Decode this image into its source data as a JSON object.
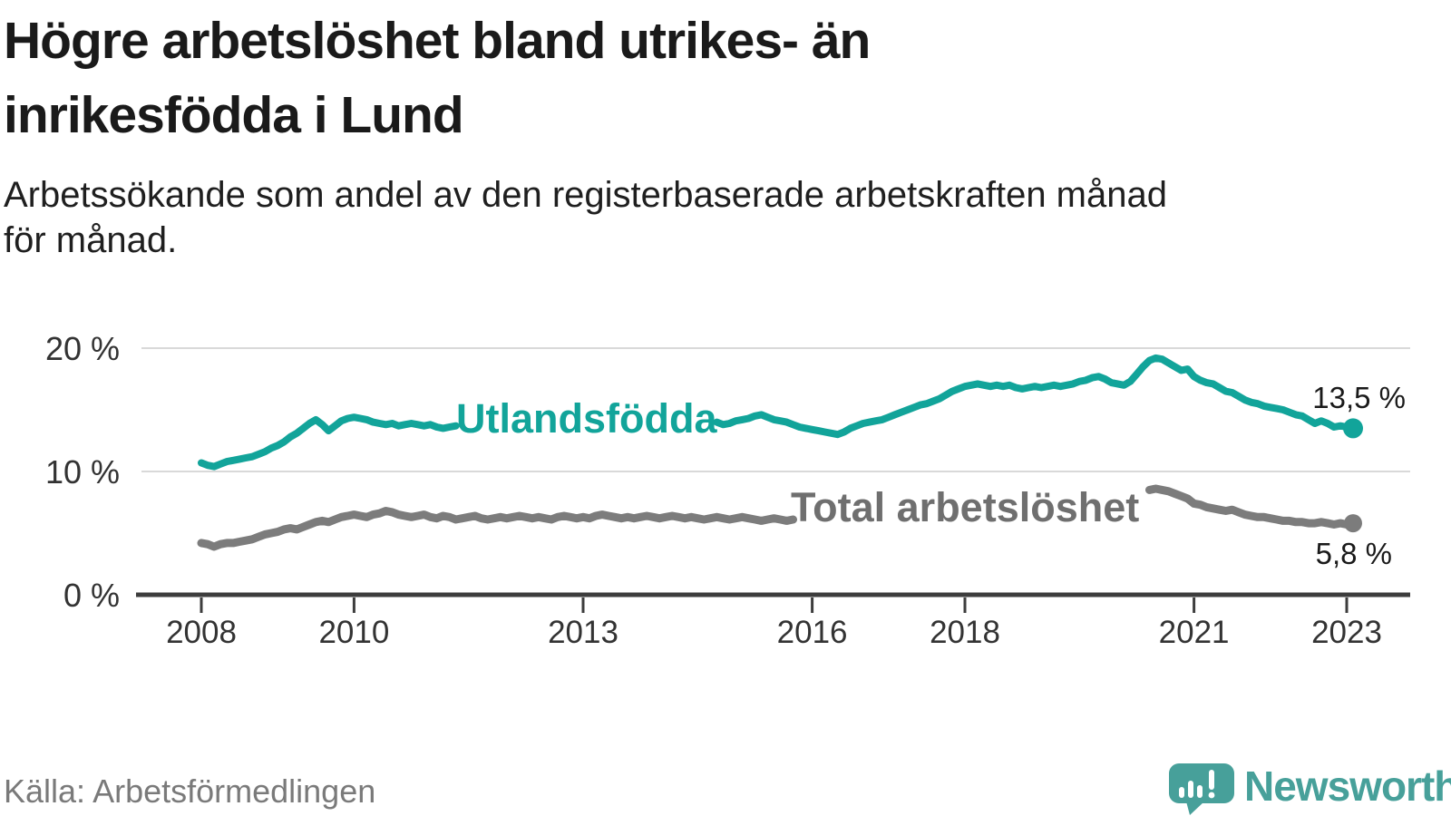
{
  "header": {
    "title_line1": "Högre arbetslöshet bland utrikes- än",
    "title_line2": "inrikesfödda i Lund",
    "subtitle_line1": "Arbetssökande som andel av den registerbaserade arbetskraften månad",
    "subtitle_line2": "för månad."
  },
  "footer": {
    "source": "Källa: Arbetsförmedlingen",
    "brand": "Newsworthy",
    "brand_color": "#47a09a"
  },
  "chart_data": {
    "type": "line",
    "title": "Högre arbetslöshet bland utrikes- än inrikesfödda i Lund",
    "subtitle": "Arbetssökande som andel av den registerbaserade arbetskraften månad för månad.",
    "source": "Källa: Arbetsförmedlingen",
    "x": {
      "start": "2008-01",
      "end": "2023-02",
      "frequency": "monthly",
      "tick_years": [
        2008,
        2010,
        2013,
        2016,
        2018,
        2021,
        2023
      ]
    },
    "y": {
      "unit": "%",
      "ylim": [
        0,
        21.8
      ],
      "ticks": [
        {
          "value": 0,
          "label": "0 %"
        },
        {
          "value": 10,
          "label": "10 %"
        },
        {
          "value": 20,
          "label": "20 %"
        }
      ]
    },
    "grid": "horizontal",
    "legend_position": "inline",
    "colors": {
      "grid": "#d9d9d9",
      "axis": "#3d3d3d",
      "tick_text": "#333333"
    },
    "series": [
      {
        "name": "Utlandsfödda",
        "color": "#12a49a",
        "stroke_width": 8,
        "end_value": 13.5,
        "end_label": "13,5 %",
        "label_gap_months": [
          40,
          81
        ],
        "values": [
          10.7,
          10.5,
          10.4,
          10.6,
          10.8,
          10.9,
          11.0,
          11.1,
          11.2,
          11.4,
          11.6,
          11.9,
          12.1,
          12.4,
          12.8,
          13.1,
          13.5,
          13.9,
          14.2,
          13.8,
          13.3,
          13.7,
          14.1,
          14.3,
          14.4,
          14.3,
          14.2,
          14.0,
          13.9,
          13.8,
          13.9,
          13.7,
          13.8,
          13.9,
          13.8,
          13.7,
          13.8,
          13.6,
          13.5,
          13.6,
          13.7,
          13.6,
          13.5,
          13.6,
          13.5,
          13.4,
          13.5,
          13.6,
          13.6,
          13.7,
          13.6,
          13.7,
          13.8,
          13.7,
          13.8,
          13.7,
          13.8,
          13.9,
          13.8,
          13.9,
          13.8,
          13.9,
          14.0,
          13.9,
          13.8,
          13.9,
          13.8,
          13.9,
          14.0,
          13.9,
          14.0,
          13.9,
          13.9,
          14.0,
          13.9,
          14.0,
          14.1,
          14.0,
          13.9,
          14.0,
          14.1,
          14.0,
          13.8,
          13.9,
          14.1,
          14.2,
          14.3,
          14.5,
          14.6,
          14.4,
          14.2,
          14.1,
          14.0,
          13.8,
          13.6,
          13.5,
          13.4,
          13.3,
          13.2,
          13.1,
          13.0,
          13.2,
          13.5,
          13.7,
          13.9,
          14.0,
          14.1,
          14.2,
          14.4,
          14.6,
          14.8,
          15.0,
          15.2,
          15.4,
          15.5,
          15.7,
          15.9,
          16.2,
          16.5,
          16.7,
          16.9,
          17.0,
          17.1,
          17.0,
          16.9,
          17.0,
          16.9,
          17.0,
          16.8,
          16.7,
          16.8,
          16.9,
          16.8,
          16.9,
          17.0,
          16.9,
          17.0,
          17.1,
          17.3,
          17.4,
          17.6,
          17.7,
          17.5,
          17.2,
          17.1,
          17.0,
          17.3,
          17.9,
          18.5,
          19.0,
          19.2,
          19.1,
          18.8,
          18.5,
          18.2,
          18.3,
          17.7,
          17.4,
          17.2,
          17.1,
          16.8,
          16.5,
          16.4,
          16.1,
          15.8,
          15.6,
          15.5,
          15.3,
          15.2,
          15.1,
          15.0,
          14.8,
          14.6,
          14.5,
          14.2,
          13.9,
          14.1,
          13.9,
          13.6,
          13.7,
          13.6,
          13.5
        ]
      },
      {
        "name": "Total arbetslöshet",
        "color": "#7c7c7c",
        "stroke_width": 9,
        "end_value": 5.8,
        "end_label": "5,8 %",
        "label_gap_months": [
          93,
          149
        ],
        "values": [
          4.2,
          4.1,
          3.9,
          4.1,
          4.2,
          4.2,
          4.3,
          4.4,
          4.5,
          4.7,
          4.9,
          5.0,
          5.1,
          5.3,
          5.4,
          5.3,
          5.5,
          5.7,
          5.9,
          6.0,
          5.9,
          6.1,
          6.3,
          6.4,
          6.5,
          6.4,
          6.3,
          6.5,
          6.6,
          6.8,
          6.7,
          6.5,
          6.4,
          6.3,
          6.4,
          6.5,
          6.3,
          6.2,
          6.4,
          6.3,
          6.1,
          6.2,
          6.3,
          6.4,
          6.2,
          6.1,
          6.2,
          6.3,
          6.2,
          6.3,
          6.4,
          6.3,
          6.2,
          6.3,
          6.2,
          6.1,
          6.3,
          6.4,
          6.3,
          6.2,
          6.3,
          6.2,
          6.4,
          6.5,
          6.4,
          6.3,
          6.2,
          6.3,
          6.2,
          6.3,
          6.4,
          6.3,
          6.2,
          6.3,
          6.4,
          6.3,
          6.2,
          6.3,
          6.2,
          6.1,
          6.2,
          6.3,
          6.2,
          6.1,
          6.2,
          6.3,
          6.2,
          6.1,
          6.0,
          6.1,
          6.2,
          6.1,
          6.0,
          6.1,
          6.2,
          6.3,
          6.2,
          6.3,
          6.2,
          6.1,
          6.2,
          6.3,
          6.2,
          6.1,
          6.2,
          6.1,
          6.2,
          6.3,
          6.2,
          6.1,
          6.2,
          6.3,
          6.2,
          6.1,
          6.2,
          6.3,
          6.2,
          6.3,
          6.4,
          6.3,
          6.2,
          6.3,
          6.2,
          6.1,
          6.2,
          6.1,
          6.2,
          6.3,
          6.2,
          6.1,
          6.2,
          6.3,
          6.2,
          6.3,
          6.4,
          6.3,
          6.4,
          6.5,
          6.4,
          6.5,
          6.6,
          6.5,
          6.6,
          6.7,
          6.8,
          6.9,
          7.3,
          7.9,
          8.3,
          8.5,
          8.6,
          8.5,
          8.4,
          8.2,
          8.0,
          7.8,
          7.4,
          7.3,
          7.1,
          7.0,
          6.9,
          6.8,
          6.9,
          6.7,
          6.5,
          6.4,
          6.3,
          6.3,
          6.2,
          6.1,
          6.0,
          6.0,
          5.9,
          5.9,
          5.8,
          5.8,
          5.9,
          5.8,
          5.7,
          5.8,
          5.7,
          5.8
        ]
      }
    ]
  }
}
